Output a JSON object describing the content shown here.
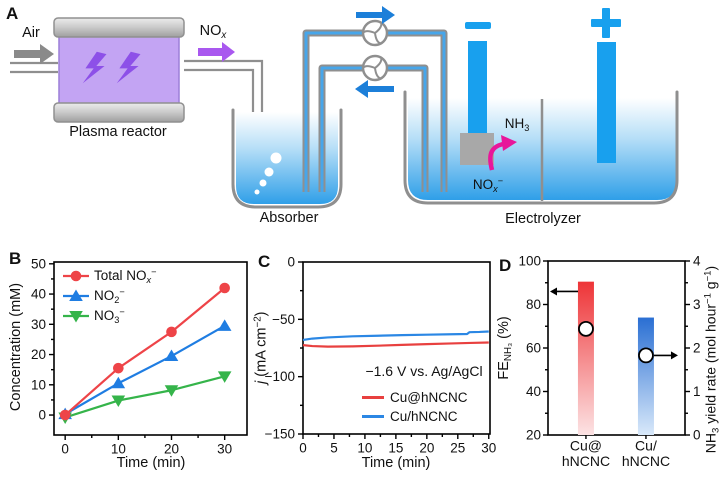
{
  "panel_labels": {
    "a": "A",
    "b": "B",
    "c": "C",
    "d": "D"
  },
  "diagram": {
    "air": "Air",
    "plasma_reactor": "Plasma reactor",
    "nox_runs": [
      {
        "t": "NO"
      },
      {
        "t": "x",
        "s": "subi"
      }
    ],
    "absorber": "Absorber",
    "electrolyzer": "Electrolyzer",
    "nh3_runs": [
      {
        "t": "NH"
      },
      {
        "t": "3",
        "s": "sub"
      }
    ],
    "nox_minus_runs": [
      {
        "t": "NO"
      },
      {
        "t": "x",
        "s": "subi"
      },
      {
        "t": "−",
        "s": "sup"
      }
    ],
    "cathode_sign": "−",
    "anode_sign": "+",
    "colors": {
      "reactor_fill": "#c3a4f3",
      "reactor_bolt": "#8d50e8",
      "nox_arrow": "#a958ef",
      "air_arrow": "#8a8a8a",
      "tube_gray": "#8f8f8f",
      "flow_blue": "#1c7fd9",
      "electrode_blue": "#18a0ee",
      "liquid_bottom": "#2f9fe8",
      "nh3_arrow": "#e8169a",
      "catalyst_gray": "#a8a8a8"
    }
  },
  "chart_data": [
    {
      "id": "B",
      "type": "line",
      "xlabel": "Time (min)",
      "ylabel": "Concentration (mM)",
      "xlim": [
        -2.1,
        34.2
      ],
      "ylim": [
        -6.6,
        50.6
      ],
      "xticks": [
        0,
        10,
        20,
        30
      ],
      "xticks_minor": [
        5,
        15,
        25
      ],
      "yticks": [
        0,
        10,
        20,
        30,
        40,
        50
      ],
      "yticks_minor": [
        5,
        15,
        25,
        35,
        45
      ],
      "grid": false,
      "legend_position": "top-left",
      "series": [
        {
          "name": "Total NOx−",
          "name_runs": [
            {
              "t": "Total NO"
            },
            {
              "t": "x",
              "s": "subi"
            },
            {
              "t": "−",
              "s": "sup"
            }
          ],
          "color": "#ee4448",
          "marker": "circle",
          "x": [
            0,
            10,
            20,
            30
          ],
          "y": [
            0,
            15.5,
            27.5,
            42
          ]
        },
        {
          "name": "NO2−",
          "name_runs": [
            {
              "t": "NO"
            },
            {
              "t": "2",
              "s": "sub"
            },
            {
              "t": "−",
              "s": "sup"
            }
          ],
          "color": "#1f7de2",
          "marker": "triangle-up",
          "x": [
            0,
            10,
            20,
            30
          ],
          "y": [
            0.3,
            10.5,
            19.5,
            29.5
          ]
        },
        {
          "name": "NO3−",
          "name_runs": [
            {
              "t": "NO"
            },
            {
              "t": "3",
              "s": "sub"
            },
            {
              "t": "−",
              "s": "sup"
            }
          ],
          "color": "#35b44a",
          "marker": "triangle-down",
          "x": [
            0,
            10,
            20,
            30
          ],
          "y": [
            -0.8,
            4.8,
            8.2,
            12.8
          ]
        }
      ]
    },
    {
      "id": "C",
      "type": "line",
      "xlabel": "Time (min)",
      "ylabel": "j (mA cm−2)",
      "ylabel_runs": [
        {
          "t": "j",
          "s": "it"
        },
        {
          "t": " (mA cm"
        },
        {
          "t": "−2",
          "s": "sup"
        },
        {
          "t": ")"
        }
      ],
      "xlim": [
        0,
        30.2
      ],
      "ylim": [
        -150,
        0
      ],
      "xticks": [
        0,
        5,
        10,
        15,
        20,
        25,
        30
      ],
      "xticks_minor": [
        2.5,
        7.5,
        12.5,
        17.5,
        22.5,
        27.5
      ],
      "yticks": [
        0,
        -50,
        -100,
        -150
      ],
      "yticks_minor": [
        -25,
        -75,
        -125
      ],
      "grid": false,
      "annotation": "−1.6 V vs. Ag/AgCl",
      "legend_position": "bottom-center",
      "series": [
        {
          "name": "Cu@hNCNC",
          "color": "#e8403f",
          "marker": "none",
          "x": [
            0,
            1.5,
            4,
            8,
            12,
            16,
            20,
            24,
            27,
            30
          ],
          "y": [
            -72.5,
            -73.3,
            -73.8,
            -73.6,
            -73,
            -72.3,
            -71.6,
            -71,
            -70.6,
            -70.2
          ]
        },
        {
          "name": "Cu/hNCNC",
          "color": "#2b87e4",
          "marker": "none",
          "x": [
            0,
            1.5,
            4,
            8,
            12,
            16,
            20,
            24,
            26.5,
            26.9,
            28.5,
            30
          ],
          "y": [
            -68,
            -66.8,
            -65.8,
            -64.8,
            -64.3,
            -63.8,
            -63.4,
            -63,
            -62.8,
            -61.2,
            -61,
            -60.6
          ]
        }
      ]
    },
    {
      "id": "D",
      "type": "bar",
      "ylabel_left": "FE_NH3 (%)",
      "ylabel_left_runs": [
        {
          "t": "FE"
        },
        {
          "t": "NH₃",
          "s": "sub"
        },
        {
          "t": " (%)"
        }
      ],
      "ylabel_right": "NH3 yield rate (mol hour−1 g−1)",
      "ylabel_right_runs": [
        {
          "t": "NH"
        },
        {
          "t": "3",
          "s": "sub"
        },
        {
          "t": " yield rate (mol hour"
        },
        {
          "t": "−1",
          "s": "sup"
        },
        {
          "t": " g"
        },
        {
          "t": "−1",
          "s": "sup"
        },
        {
          "t": ")"
        }
      ],
      "categories": [
        {
          "line1": "Cu@",
          "line2": "hNCNC"
        },
        {
          "line1": "Cu/",
          "line2": "hNCNC"
        }
      ],
      "ylim_left": [
        20,
        100
      ],
      "yticks_left": [
        20,
        40,
        60,
        80,
        100
      ],
      "yticks_minor_left": [
        30,
        50,
        70,
        90
      ],
      "ylim_right": [
        0,
        4
      ],
      "yticks_right": [
        0,
        1,
        2,
        3,
        4
      ],
      "yticks_minor_right": [
        0.5,
        1.5,
        2.5,
        3.5
      ],
      "fe_values": [
        90.5,
        74
      ],
      "yield_values": [
        2.44,
        1.83
      ],
      "bar_gradient_top": [
        "#ee3437",
        "#2a6fd3"
      ],
      "bar_gradient_bottom": [
        "#fce3e4",
        "#d9e9fa"
      ],
      "marker_circle": {
        "fill": "#ffffff",
        "stroke": "#000000"
      },
      "axis_arrows": {
        "left_arrow_at_left_value": 86,
        "right_arrow_on_bar": 1
      }
    }
  ]
}
